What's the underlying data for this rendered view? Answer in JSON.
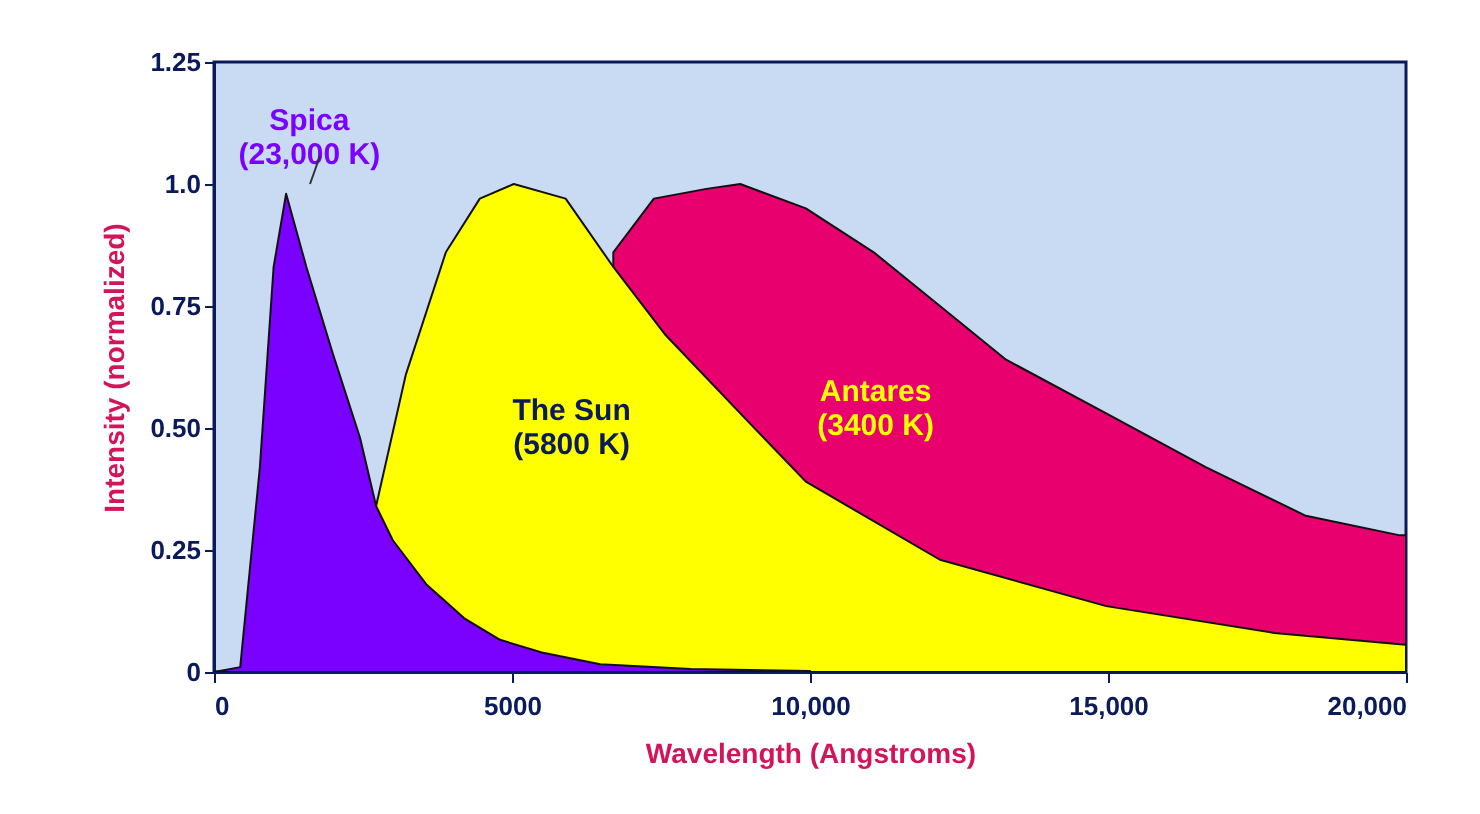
{
  "chart_data": {
    "type": "area",
    "xlabel": "Wavelength (Angstroms)",
    "ylabel": "Intensity (normalized)",
    "xlim": [
      0,
      20000
    ],
    "ylim": [
      0,
      1.25
    ],
    "xticks": [
      0,
      5000,
      {
        "value": 10000,
        "label": "10,000"
      },
      {
        "value": 15000,
        "label": "15,000"
      },
      {
        "value": 20000,
        "label": "20,000"
      }
    ],
    "yticks": [
      0,
      0.25,
      {
        "value": 0.5,
        "label": "0.50"
      },
      0.75,
      {
        "value": 1.0,
        "label": "1.0"
      },
      1.25
    ],
    "grid": false,
    "series": [
      {
        "name": "Antares\n(3400 K)",
        "color": "#e8006e",
        "x": [
          6700,
          7380,
          8260,
          8830,
          9930,
          11070,
          12180,
          13290,
          14970,
          16640,
          18320,
          19900,
          20000
        ],
        "values": [
          0.86,
          0.97,
          0.99,
          1.0,
          0.95,
          0.86,
          0.75,
          0.64,
          0.53,
          0.42,
          0.32,
          0.28,
          0.28
        ]
      },
      {
        "name": "The Sun\n(5800 K)",
        "color": "#ffff00",
        "x": [
          2720,
          3220,
          3890,
          4460,
          5030,
          5900,
          6700,
          7580,
          8830,
          9930,
          12180,
          14970,
          17790,
          19900,
          20000
        ],
        "values": [
          0.34,
          0.61,
          0.86,
          0.97,
          1.0,
          0.97,
          0.83,
          0.69,
          0.53,
          0.39,
          0.23,
          0.135,
          0.08,
          0.057,
          0.056
        ]
      },
      {
        "name": "Spica\n(23,000 K)",
        "color": "#7a00ff",
        "x": [
          0,
          440,
          770,
          1000,
          1210,
          1550,
          2000,
          2450,
          2720,
          3000,
          3560,
          4200,
          4800,
          5500,
          6480,
          8000,
          10000
        ],
        "values": [
          0,
          0.01,
          0.42,
          0.83,
          0.98,
          0.83,
          0.65,
          0.48,
          0.34,
          0.27,
          0.18,
          0.11,
          0.066,
          0.04,
          0.016,
          0.006,
          0.002
        ]
      }
    ]
  }
}
